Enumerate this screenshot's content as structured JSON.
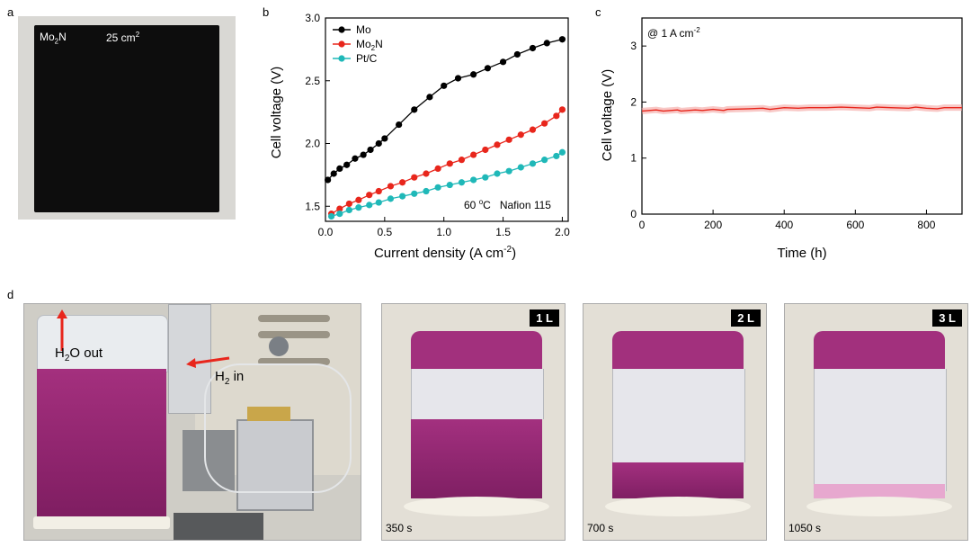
{
  "panels": {
    "a": "a",
    "b": "b",
    "c": "c",
    "d": "d"
  },
  "photo_a": {
    "material": "Mo",
    "material_sub": "2",
    "material_tail": "N",
    "area": "25 cm",
    "area_sup": "2"
  },
  "chart_data": [
    {
      "type": "scatter",
      "id": "b",
      "xlabel": "Current density (A cm",
      "xlabel_sup": "-2",
      "xlabel_tail": ")",
      "ylabel": "Cell voltage (V)",
      "xlim": [
        0,
        2.05
      ],
      "ylim": [
        1.38,
        3.0
      ],
      "xticks": [
        "0.0",
        "0.5",
        "1.0",
        "1.5",
        "2.0"
      ],
      "yticks": [
        "1.5",
        "2.0",
        "2.5",
        "3.0"
      ],
      "annotation": "60 °C    Nafion 115",
      "annotation_parts": {
        "temp": "60 ",
        "deg": "o",
        "unit": "C",
        "membrane": "Nafion 115"
      },
      "legend_position": "top-left",
      "series": [
        {
          "name": "Mo",
          "color": "#000000",
          "x": [
            0.02,
            0.07,
            0.12,
            0.18,
            0.25,
            0.32,
            0.38,
            0.45,
            0.5,
            0.62,
            0.75,
            0.88,
            1.0,
            1.12,
            1.25,
            1.37,
            1.5,
            1.62,
            1.75,
            1.87,
            2.0
          ],
          "y": [
            1.71,
            1.76,
            1.8,
            1.83,
            1.88,
            1.91,
            1.95,
            2.0,
            2.04,
            2.15,
            2.27,
            2.37,
            2.46,
            2.52,
            2.55,
            2.6,
            2.65,
            2.71,
            2.76,
            2.8,
            2.83
          ]
        },
        {
          "name": "Mo",
          "name_sub": "2",
          "name_tail": "N",
          "color": "#e8261c",
          "x": [
            0.05,
            0.12,
            0.2,
            0.28,
            0.37,
            0.45,
            0.55,
            0.65,
            0.75,
            0.85,
            0.95,
            1.05,
            1.15,
            1.25,
            1.35,
            1.45,
            1.55,
            1.65,
            1.75,
            1.85,
            1.95,
            2.0
          ],
          "y": [
            1.44,
            1.48,
            1.52,
            1.55,
            1.59,
            1.62,
            1.66,
            1.69,
            1.73,
            1.76,
            1.8,
            1.84,
            1.87,
            1.91,
            1.95,
            1.99,
            2.03,
            2.07,
            2.11,
            2.16,
            2.22,
            2.27
          ]
        },
        {
          "name": "Pt/C",
          "color": "#1fb8b8",
          "x": [
            0.05,
            0.12,
            0.2,
            0.28,
            0.37,
            0.45,
            0.55,
            0.65,
            0.75,
            0.85,
            0.95,
            1.05,
            1.15,
            1.25,
            1.35,
            1.45,
            1.55,
            1.65,
            1.75,
            1.85,
            1.95,
            2.0
          ],
          "y": [
            1.42,
            1.44,
            1.47,
            1.49,
            1.51,
            1.53,
            1.56,
            1.58,
            1.6,
            1.62,
            1.65,
            1.67,
            1.69,
            1.71,
            1.73,
            1.76,
            1.78,
            1.81,
            1.84,
            1.87,
            1.9,
            1.93
          ]
        }
      ]
    },
    {
      "type": "line",
      "id": "c",
      "xlabel": "Time (h)",
      "ylabel": "Cell voltage (V)",
      "xlim": [
        0,
        900
      ],
      "ylim": [
        0,
        3.5
      ],
      "xticks": [
        "0",
        "200",
        "400",
        "600",
        "800"
      ],
      "yticks": [
        "0",
        "1",
        "2",
        "3"
      ],
      "annotation": "@ 1 A cm",
      "annotation_sup": "-2",
      "series": [
        {
          "color": "#e8261c",
          "x": [
            0,
            40,
            60,
            100,
            110,
            150,
            170,
            200,
            230,
            240,
            300,
            340,
            360,
            400,
            440,
            470,
            520,
            560,
            600,
            640,
            660,
            700,
            750,
            770,
            800,
            830,
            850,
            900
          ],
          "y": [
            1.84,
            1.86,
            1.84,
            1.86,
            1.84,
            1.86,
            1.85,
            1.87,
            1.85,
            1.87,
            1.88,
            1.89,
            1.87,
            1.9,
            1.89,
            1.9,
            1.9,
            1.91,
            1.9,
            1.89,
            1.91,
            1.9,
            1.89,
            1.91,
            1.89,
            1.88,
            1.9,
            1.9
          ]
        }
      ]
    }
  ],
  "photo_d": {
    "h2o_out": "H",
    "h2o_sub": "2",
    "h2o_tail": "O out",
    "h2_in": "H",
    "h2_sub": "2",
    "h2_tail": " in",
    "frames": [
      {
        "tag": "1 L",
        "time": "350 s"
      },
      {
        "tag": "2 L",
        "time": "700 s"
      },
      {
        "tag": "3 L",
        "time": "1050 s"
      }
    ]
  }
}
